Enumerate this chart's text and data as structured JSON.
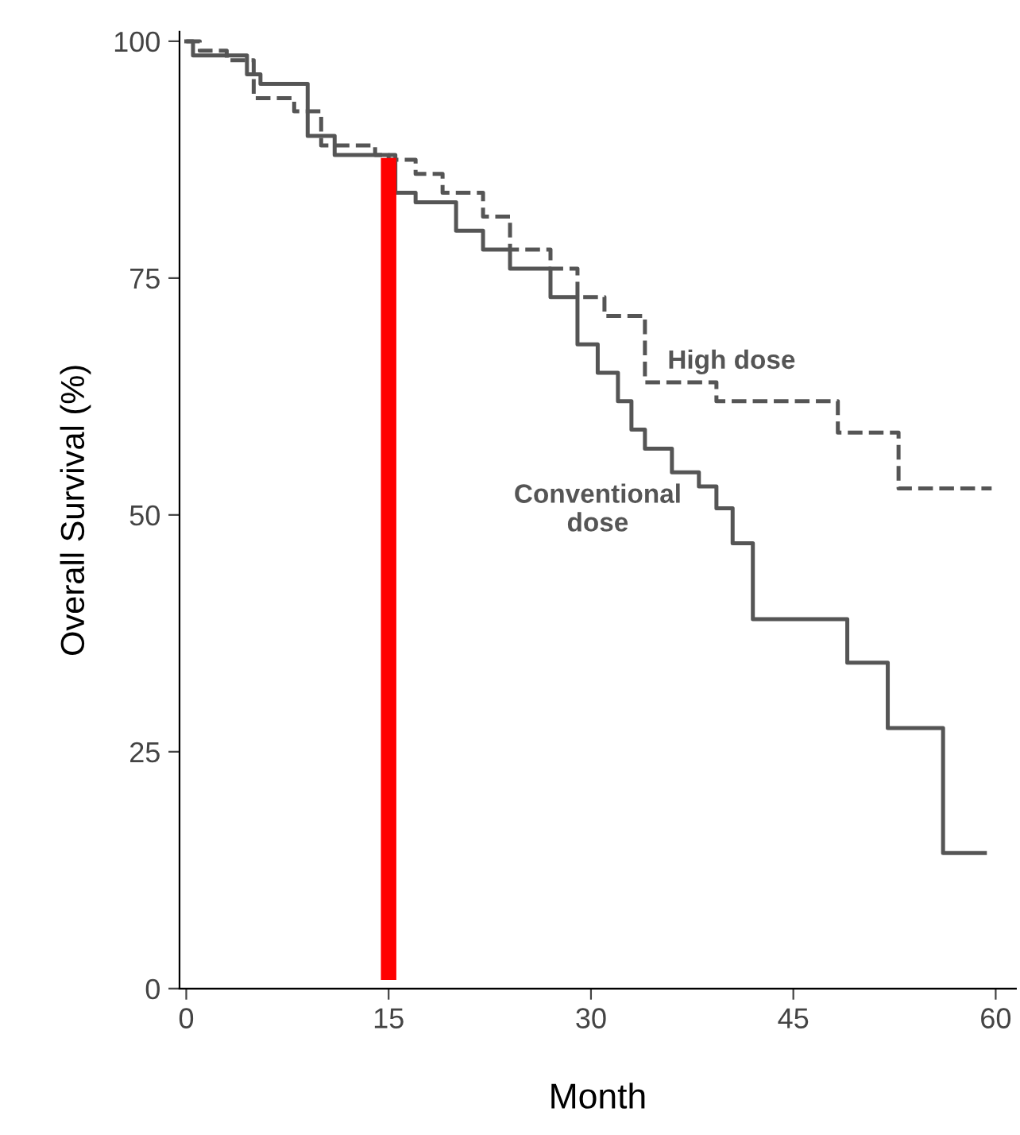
{
  "chart_data": {
    "type": "step",
    "xlabel": "Month",
    "ylabel": "Overall Survival (%)",
    "xlim": [
      -0.5,
      61.5
    ],
    "ylim": [
      0,
      101
    ],
    "xticks": [
      0,
      15,
      30,
      45,
      60
    ],
    "yticks": [
      0,
      25,
      50,
      75,
      100
    ],
    "grid": false,
    "legend": false,
    "series": [
      {
        "name": "High dose",
        "color": "#555555",
        "line_style": "dashed",
        "x": [
          0,
          1,
          3,
          5,
          8,
          10,
          14,
          15,
          17,
          19,
          22,
          24,
          27,
          29,
          31,
          34,
          39.3,
          48.3,
          52.8,
          59.7
        ],
        "values": [
          100,
          99,
          98,
          94,
          92.6,
          89,
          88,
          87.5,
          86,
          84,
          81.5,
          78,
          76,
          73,
          71,
          64,
          62,
          58.7,
          52.8,
          52.8
        ]
      },
      {
        "name": "Conventional dose",
        "color": "#555555",
        "line_style": "solid",
        "x": [
          0,
          0.5,
          4.5,
          5.5,
          9,
          11,
          15.5,
          17,
          20,
          22,
          24,
          27,
          29,
          30.5,
          32,
          33,
          34,
          36,
          38,
          39.3,
          40.5,
          42,
          49,
          52,
          56.1,
          59.2
        ],
        "values": [
          100,
          98.5,
          96.5,
          95.5,
          90,
          88,
          84,
          83,
          80,
          78,
          76,
          73,
          68,
          65,
          62,
          59,
          57,
          54.5,
          53,
          50.7,
          47,
          39,
          34.4,
          27.5,
          14.3,
          14.3
        ]
      }
    ],
    "ref_lines": [
      {
        "axis": "x",
        "value": 15,
        "color": "#ff0000",
        "line_style": "solid"
      }
    ]
  }
}
